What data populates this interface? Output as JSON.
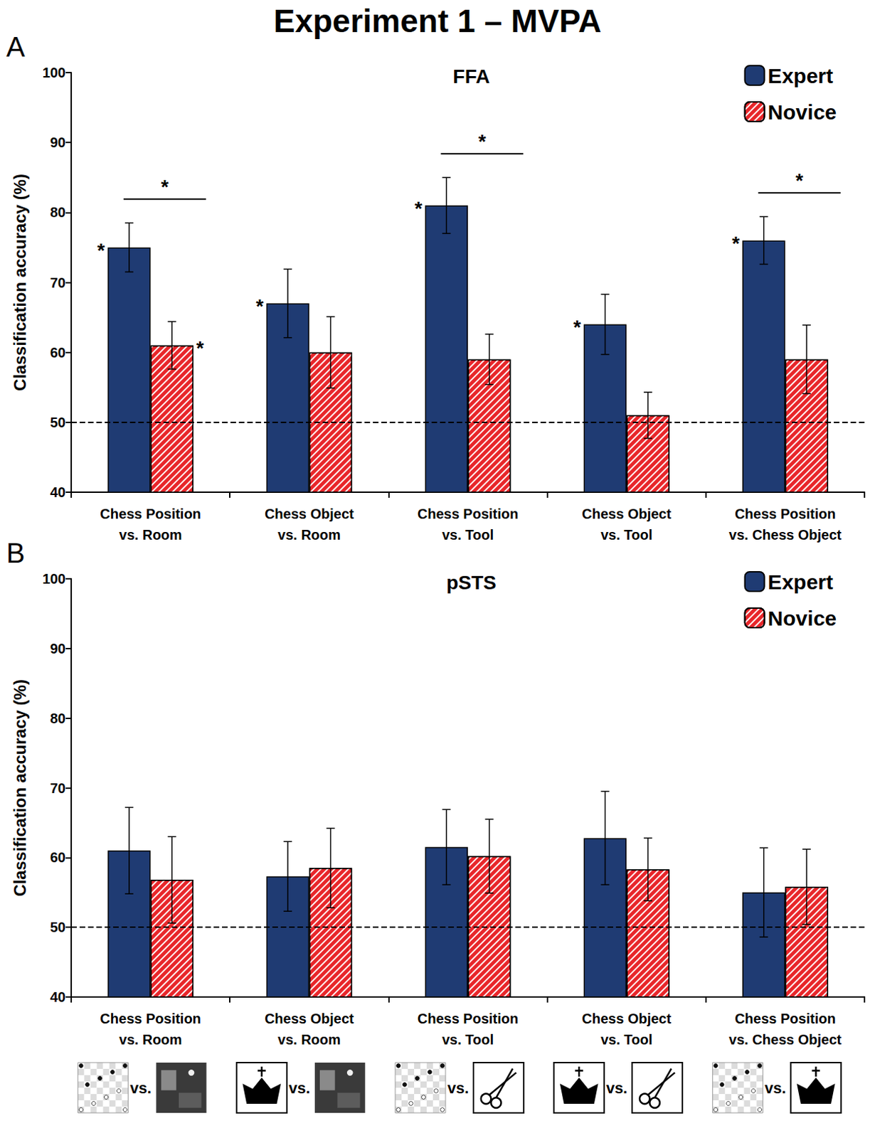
{
  "title": "Experiment 1 – MVPA",
  "icon_separator": "vs.",
  "chart_data": [
    {
      "panel": "A",
      "type": "bar",
      "title": "FFA",
      "categories": [
        "Chess Position\nvs. Room",
        "Chess Object\nvs. Room",
        "Chess Position\nvs. Tool",
        "Chess Object\nvs. Tool",
        "Chess Position\nvs. Chess Object"
      ],
      "series": [
        {
          "name": "Expert",
          "color": "#1f3b73",
          "values": [
            75,
            67,
            81,
            64,
            76
          ],
          "errors": [
            3.5,
            4.9,
            4,
            4.3,
            3.4
          ]
        },
        {
          "name": "Novice",
          "color": "#e8262a",
          "values": [
            61,
            60,
            59,
            51,
            59
          ],
          "errors": [
            3.4,
            5.1,
            3.6,
            3.3,
            4.9
          ]
        }
      ],
      "ylabel": "Classification accuracy (%)",
      "ylim": [
        40,
        100
      ],
      "yticks": [
        40,
        50,
        60,
        70,
        80,
        90,
        100
      ],
      "grid": false,
      "legend": "top-right",
      "reference_line": 50,
      "annotations": [
        {
          "category": "Chess Position\nvs. Room",
          "series": "Expert",
          "text": "*"
        },
        {
          "category": "Chess Position\nvs. Room",
          "series": "Novice",
          "text": "*"
        },
        {
          "category": "Chess Object\nvs. Room",
          "series": "Expert",
          "text": "*"
        },
        {
          "category": "Chess Position\nvs. Tool",
          "series": "Expert",
          "text": "*"
        },
        {
          "category": "Chess Object\nvs. Tool",
          "series": "Expert",
          "text": "*"
        },
        {
          "category": "Chess Position\nvs. Chess Object",
          "series": "Expert",
          "text": "*"
        }
      ],
      "bracket_annotations": [
        {
          "category": "Chess Position\nvs. Room",
          "text": "*"
        },
        {
          "category": "Chess Position\nvs. Tool",
          "text": "*"
        },
        {
          "category": "Chess Position\nvs. Chess Object",
          "text": "*"
        }
      ]
    },
    {
      "panel": "B",
      "type": "bar",
      "title": "pSTS",
      "categories": [
        "Chess Position\nvs. Room",
        "Chess Object\nvs. Room",
        "Chess Position\nvs. Tool",
        "Chess Object\nvs. Tool",
        "Chess Position\nvs. Chess Object"
      ],
      "series": [
        {
          "name": "Expert",
          "color": "#1f3b73",
          "values": [
            61,
            57.3,
            61.5,
            62.8,
            55
          ],
          "errors": [
            6.2,
            5,
            5.4,
            6.7,
            6.4
          ]
        },
        {
          "name": "Novice",
          "color": "#e8262a",
          "values": [
            56.8,
            58.5,
            60.2,
            58.3,
            55.8
          ],
          "errors": [
            6.2,
            5.7,
            5.3,
            4.5,
            5.4
          ]
        }
      ],
      "ylabel": "Classification accuracy (%)",
      "ylim": [
        40,
        100
      ],
      "yticks": [
        40,
        50,
        60,
        70,
        80,
        90,
        100
      ],
      "grid": false,
      "legend": "top-right",
      "reference_line": 50,
      "annotations": [],
      "bracket_annotations": []
    }
  ]
}
